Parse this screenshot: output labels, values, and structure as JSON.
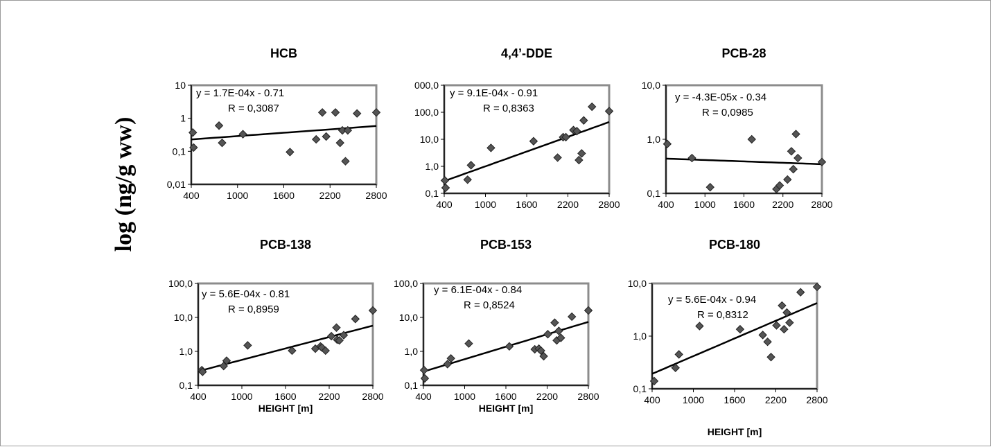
{
  "figure": {
    "ylabel": "log (ng/g ww)"
  },
  "chart_data": [
    {
      "type": "scatter",
      "title": "HCB",
      "xlabel": "",
      "ylabel": "log (ng/g ww)",
      "y_scale": "log",
      "xlim": [
        400,
        2800
      ],
      "ylim": [
        0.01,
        10
      ],
      "x_ticks": [
        "400",
        "1000",
        "1600",
        "2200",
        "2800"
      ],
      "y_ticks": [
        "10",
        "1",
        "0,1",
        "0,01"
      ],
      "equation": "y = 1.7E-04x - 0.71",
      "r_label": "R = 0,3087",
      "trend": {
        "slope": 0.00017,
        "intercept": -0.71
      },
      "x": [
        420,
        430,
        760,
        800,
        1070,
        1680,
        2020,
        2100,
        2150,
        2270,
        2330,
        2360,
        2400,
        2430,
        2550,
        2800
      ],
      "y": [
        0.37,
        0.13,
        0.6,
        0.18,
        0.33,
        0.095,
        0.23,
        1.5,
        0.28,
        1.5,
        0.18,
        0.43,
        0.05,
        0.43,
        1.4,
        1.5
      ],
      "grid": false,
      "legend": "none"
    },
    {
      "type": "scatter",
      "title": "4,4’-DDE",
      "xlabel": "",
      "ylabel": "log (ng/g ww)",
      "y_scale": "log",
      "xlim": [
        400,
        2800
      ],
      "ylim": [
        0.1,
        1000
      ],
      "x_ticks": [
        "400",
        "1000",
        "1600",
        "2200",
        "2800"
      ],
      "y_ticks": [
        "000,0",
        "100,0",
        "10,0",
        "1,0",
        "0,1"
      ],
      "equation": "y = 9.1E-04x - 0.91",
      "r_label": "R = 0,8363",
      "trend": {
        "slope": 0.00091,
        "intercept": -0.91
      },
      "x": [
        410,
        420,
        740,
        790,
        1080,
        1700,
        2050,
        2130,
        2170,
        2280,
        2330,
        2360,
        2400,
        2430,
        2550,
        2800
      ],
      "y": [
        0.3,
        0.16,
        0.32,
        1.1,
        4.8,
        8.5,
        2.1,
        12,
        12,
        22,
        20,
        1.7,
        3,
        50,
        160,
        110
      ],
      "grid": false,
      "legend": "none"
    },
    {
      "type": "scatter",
      "title": "PCB-28",
      "xlabel": "",
      "ylabel": "log (ng/g ww)",
      "y_scale": "log",
      "xlim": [
        400,
        2800
      ],
      "ylim": [
        0.1,
        10
      ],
      "x_ticks": [
        "400",
        "1000",
        "1600",
        "2200",
        "2800"
      ],
      "y_ticks": [
        "10,0",
        "1,0",
        "0,1"
      ],
      "equation": "y = -4.3E-05x - 0.34",
      "r_label": "R = 0,0985",
      "trend": {
        "slope": -4.3e-05,
        "intercept": -0.34
      },
      "x": [
        420,
        800,
        1080,
        1720,
        2100,
        2150,
        2270,
        2330,
        2360,
        2400,
        2430,
        2800
      ],
      "y": [
        0.82,
        0.45,
        0.13,
        1.0,
        0.12,
        0.14,
        0.18,
        0.6,
        0.28,
        1.25,
        0.45,
        0.38
      ],
      "grid": false,
      "legend": "none"
    },
    {
      "type": "scatter",
      "title": "PCB-138",
      "xlabel": "HEIGHT [m]",
      "ylabel": "log (ng/g ww)",
      "y_scale": "log",
      "xlim": [
        400,
        2800
      ],
      "ylim": [
        0.1,
        100
      ],
      "x_ticks": [
        "400",
        "1000",
        "1600",
        "2200",
        "2800"
      ],
      "y_ticks": [
        "100,0",
        "10,0",
        "1,0",
        "0,1"
      ],
      "equation": "y = 5.6E-04x - 0.81",
      "r_label": "R = 0,8959",
      "trend": {
        "slope": 0.00056,
        "intercept": -0.81
      },
      "x": [
        450,
        460,
        750,
        790,
        1080,
        1690,
        2010,
        2080,
        2100,
        2150,
        2230,
        2300,
        2310,
        2340,
        2400,
        2560,
        2800
      ],
      "y": [
        0.28,
        0.25,
        0.37,
        0.53,
        1.5,
        1.05,
        1.2,
        1.4,
        1.3,
        1.05,
        2.8,
        5,
        2.2,
        2.1,
        3,
        9,
        16
      ],
      "grid": false,
      "legend": "none"
    },
    {
      "type": "scatter",
      "title": "PCB-153",
      "xlabel": "HEIGHT [m]",
      "ylabel": "",
      "y_scale": "log",
      "xlim": [
        400,
        2800
      ],
      "ylim": [
        0.1,
        100
      ],
      "x_ticks": [
        "400",
        "1000",
        "1600",
        "2200",
        "2800"
      ],
      "y_ticks": [
        "100,0",
        "10,0",
        "1,0",
        "0,1"
      ],
      "equation": "y = 6.1E-04x - 0.84",
      "r_label": "R = 0,8524",
      "trend": {
        "slope": 0.00061,
        "intercept": -0.84
      },
      "x": [
        410,
        420,
        750,
        800,
        1060,
        1650,
        2020,
        2080,
        2110,
        2150,
        2210,
        2310,
        2340,
        2370,
        2400,
        2560,
        2800
      ],
      "y": [
        0.28,
        0.16,
        0.42,
        0.62,
        1.7,
        1.4,
        1.15,
        1.2,
        1.05,
        0.72,
        3.2,
        7,
        2.1,
        4,
        2.5,
        10.5,
        16
      ],
      "grid": false,
      "legend": "none"
    },
    {
      "type": "scatter",
      "title": "PCB-180",
      "xlabel": "HEIGHT [m]",
      "ylabel": "",
      "y_scale": "log",
      "xlim": [
        400,
        2800
      ],
      "ylim": [
        0.1,
        10
      ],
      "x_ticks": [
        "400",
        "1000",
        "1600",
        "2200",
        "2800"
      ],
      "y_ticks": [
        "10,0",
        "1,0",
        "0,1"
      ],
      "equation": "y = 5.6E-04x - 0.94",
      "r_label": "R = 0,8312",
      "trend": {
        "slope": 0.00056,
        "intercept": -0.94
      },
      "x": [
        430,
        740,
        790,
        1090,
        1680,
        2010,
        2080,
        2130,
        2210,
        2290,
        2320,
        2360,
        2400,
        2560,
        2800
      ],
      "y": [
        0.14,
        0.25,
        0.45,
        1.55,
        1.35,
        1.05,
        0.78,
        0.4,
        1.6,
        3.8,
        1.35,
        2.8,
        1.8,
        6.8,
        8.6
      ],
      "grid": false,
      "legend": "none"
    }
  ]
}
